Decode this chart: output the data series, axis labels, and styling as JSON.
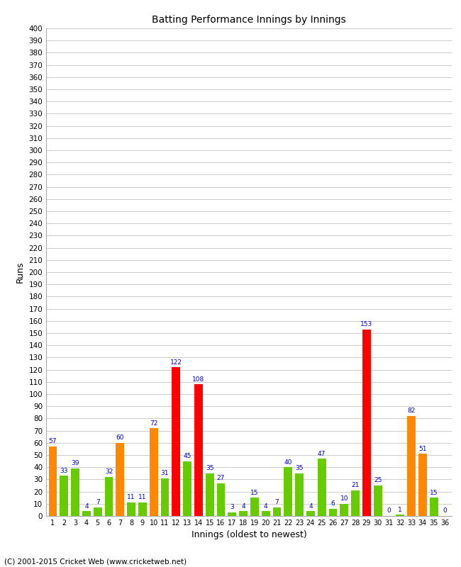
{
  "innings": [
    1,
    2,
    3,
    4,
    5,
    6,
    7,
    8,
    9,
    10,
    11,
    12,
    13,
    14,
    15,
    16,
    17,
    18,
    19,
    20,
    21,
    22,
    23,
    24,
    25,
    26,
    27,
    28,
    29,
    30,
    31,
    32,
    33,
    34,
    35,
    36
  ],
  "values": [
    57,
    33,
    39,
    4,
    7,
    32,
    60,
    11,
    11,
    72,
    31,
    122,
    45,
    108,
    35,
    27,
    3,
    4,
    15,
    4,
    7,
    40,
    35,
    4,
    47,
    6,
    10,
    21,
    153,
    25,
    0,
    1,
    82,
    51,
    15,
    0
  ],
  "colors": [
    "orange",
    "limegreen",
    "limegreen",
    "limegreen",
    "limegreen",
    "limegreen",
    "orange",
    "limegreen",
    "limegreen",
    "orange",
    "limegreen",
    "red",
    "limegreen",
    "red",
    "limegreen",
    "limegreen",
    "limegreen",
    "limegreen",
    "limegreen",
    "limegreen",
    "limegreen",
    "limegreen",
    "limegreen",
    "limegreen",
    "limegreen",
    "limegreen",
    "limegreen",
    "limegreen",
    "red",
    "limegreen",
    "limegreen",
    "limegreen",
    "orange",
    "orange",
    "limegreen",
    "limegreen"
  ],
  "title": "Batting Performance Innings by Innings",
  "xlabel": "Innings (oldest to newest)",
  "ylabel": "Runs",
  "ylim": [
    0,
    400
  ],
  "ytick_step": 10,
  "background_color": "#ffffff",
  "grid_color": "#cccccc",
  "label_color": "#0000cc",
  "footer": "(C) 2001-2015 Cricket Web (www.cricketweb.net)",
  "color_map": {
    "orange": "#ff8800",
    "limegreen": "#66cc00",
    "red": "#ff0000"
  }
}
